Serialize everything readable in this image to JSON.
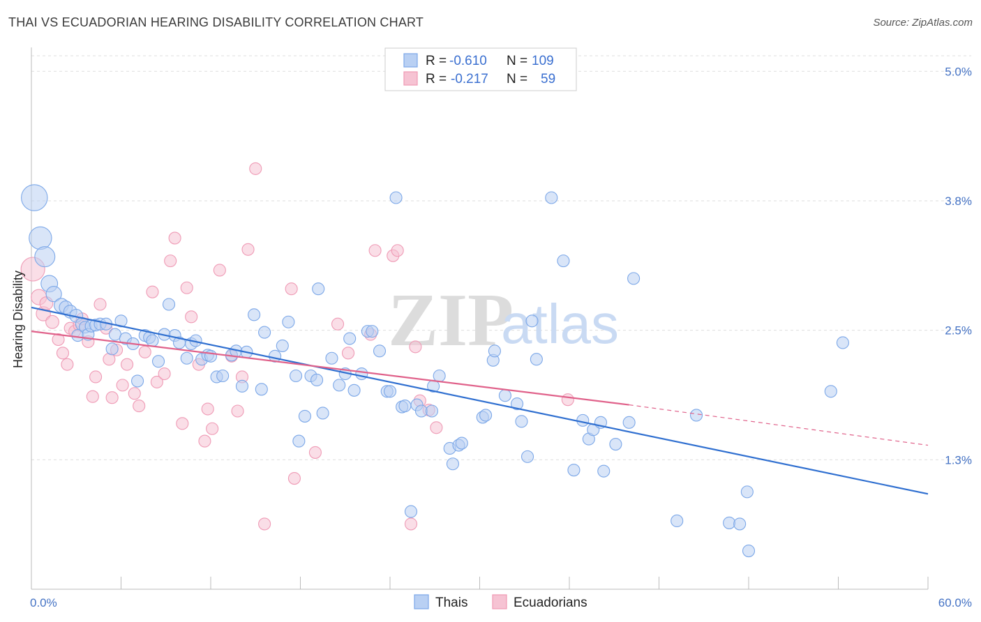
{
  "title": "THAI VS ECUADORIAN HEARING DISABILITY CORRELATION CHART",
  "source": "Source: ZipAtlas.com",
  "watermark": {
    "zip": "ZIP",
    "atlas": "atlas"
  },
  "chart_data": {
    "type": "scatter",
    "xlabel": "",
    "ylabel": "Hearing Disability",
    "xlim": [
      0,
      60
    ],
    "ylim": [
      0,
      5.15
    ],
    "x_tick_labels": [
      "0.0%",
      "60.0%"
    ],
    "y_ticks": [
      {
        "value": 1.25,
        "label": "1.3%"
      },
      {
        "value": 2.5,
        "label": "2.5%"
      },
      {
        "value": 3.75,
        "label": "3.8%"
      },
      {
        "value": 5.0,
        "label": "5.0%"
      }
    ],
    "grid": true,
    "legend_position": "bottom-center",
    "stats": [
      {
        "r_label": "R =",
        "r": "-0.610",
        "n_label": "N =",
        "n": "109"
      },
      {
        "r_label": "R =",
        "r": "-0.217",
        "n_label": "N =",
        "n": "59"
      }
    ],
    "series": [
      {
        "name": "Thais",
        "color": "#7ba7e8",
        "fill": "#b9d0f3",
        "line_color": "#2f6fd0",
        "trend": {
          "x0": 0,
          "y0": 2.72,
          "x1": 60,
          "y1": 0.92
        },
        "points": [
          [
            0.2,
            3.78,
            2.2
          ],
          [
            0.6,
            3.39,
            1.9
          ],
          [
            0.9,
            3.21,
            1.7
          ],
          [
            1.2,
            2.95,
            1.4
          ],
          [
            1.5,
            2.85,
            1.3
          ],
          [
            2.0,
            2.74,
            1.2
          ],
          [
            2.3,
            2.72,
            1.1
          ],
          [
            2.6,
            2.68,
            1.1
          ],
          [
            3.0,
            2.64,
            1.1
          ],
          [
            3.1,
            2.45,
            1.0
          ],
          [
            3.4,
            2.56,
            1.1
          ],
          [
            3.6,
            2.53,
            1.0
          ],
          [
            3.8,
            2.46,
            1.0
          ],
          [
            4.0,
            2.54,
            1.0
          ],
          [
            4.3,
            2.55,
            1.0
          ],
          [
            4.6,
            2.56,
            1.0
          ],
          [
            5.0,
            2.56,
            1.0
          ],
          [
            5.4,
            2.32,
            1.0
          ],
          [
            5.6,
            2.46,
            1.0
          ],
          [
            6.0,
            2.59,
            1.0
          ],
          [
            6.3,
            2.42,
            1.0
          ],
          [
            6.8,
            2.37,
            1.0
          ],
          [
            7.1,
            2.01,
            1.0
          ],
          [
            7.6,
            2.45,
            1.0
          ],
          [
            7.9,
            2.43,
            1.0
          ],
          [
            8.1,
            2.4,
            1.0
          ],
          [
            8.5,
            2.2,
            1.0
          ],
          [
            8.9,
            2.46,
            1.0
          ],
          [
            9.2,
            2.75,
            1.0
          ],
          [
            9.6,
            2.45,
            1.0
          ],
          [
            9.9,
            2.38,
            1.0
          ],
          [
            10.4,
            2.23,
            1.0
          ],
          [
            10.7,
            2.37,
            1.0
          ],
          [
            11.0,
            2.4,
            1.0
          ],
          [
            11.4,
            2.22,
            1.0
          ],
          [
            11.8,
            2.26,
            1.0
          ],
          [
            12.0,
            2.25,
            1.0
          ],
          [
            12.4,
            2.05,
            1.0
          ],
          [
            12.8,
            2.06,
            1.0
          ],
          [
            13.4,
            2.26,
            1.0
          ],
          [
            13.7,
            2.3,
            1.0
          ],
          [
            14.1,
            1.96,
            1.0
          ],
          [
            14.4,
            2.29,
            1.0
          ],
          [
            14.9,
            2.65,
            1.0
          ],
          [
            15.4,
            1.93,
            1.0
          ],
          [
            15.6,
            2.48,
            1.0
          ],
          [
            16.3,
            2.25,
            1.0
          ],
          [
            16.8,
            2.35,
            1.0
          ],
          [
            17.2,
            2.58,
            1.0
          ],
          [
            17.7,
            2.06,
            1.0
          ],
          [
            17.9,
            1.43,
            1.0
          ],
          [
            18.3,
            1.67,
            1.0
          ],
          [
            18.7,
            2.06,
            1.0
          ],
          [
            19.1,
            2.02,
            1.0
          ],
          [
            19.2,
            2.9,
            1.0
          ],
          [
            19.5,
            1.7,
            1.0
          ],
          [
            20.1,
            2.23,
            1.0
          ],
          [
            20.6,
            1.97,
            1.0
          ],
          [
            21.0,
            2.08,
            1.0
          ],
          [
            21.3,
            2.42,
            1.0
          ],
          [
            21.6,
            1.92,
            1.0
          ],
          [
            22.1,
            2.08,
            1.0
          ],
          [
            22.5,
            2.49,
            1.0
          ],
          [
            22.8,
            2.49,
            1.0
          ],
          [
            23.3,
            2.3,
            1.0
          ],
          [
            23.8,
            1.91,
            1.0
          ],
          [
            24.0,
            1.91,
            1.0
          ],
          [
            24.4,
            3.78,
            1.0
          ],
          [
            24.8,
            1.76,
            1.0
          ],
          [
            25.0,
            1.77,
            1.0
          ],
          [
            25.4,
            0.75,
            1.0
          ],
          [
            25.8,
            1.78,
            1.0
          ],
          [
            26.1,
            1.72,
            1.0
          ],
          [
            26.8,
            1.72,
            1.0
          ],
          [
            26.9,
            1.96,
            1.0
          ],
          [
            27.3,
            2.06,
            1.0
          ],
          [
            28.0,
            1.36,
            1.0
          ],
          [
            28.2,
            1.21,
            1.0
          ],
          [
            28.6,
            1.39,
            1.0
          ],
          [
            28.8,
            1.41,
            1.0
          ],
          [
            30.2,
            1.66,
            1.0
          ],
          [
            30.4,
            1.68,
            1.0
          ],
          [
            30.9,
            2.21,
            1.0
          ],
          [
            31.0,
            2.3,
            1.0
          ],
          [
            31.7,
            1.87,
            1.0
          ],
          [
            32.5,
            1.79,
            1.0
          ],
          [
            32.8,
            1.62,
            1.0
          ],
          [
            33.2,
            1.28,
            1.0
          ],
          [
            33.5,
            2.59,
            1.0
          ],
          [
            33.8,
            2.22,
            1.0
          ],
          [
            34.8,
            3.78,
            1.0
          ],
          [
            35.6,
            3.17,
            1.0
          ],
          [
            36.3,
            1.15,
            1.0
          ],
          [
            36.9,
            1.63,
            1.0
          ],
          [
            37.3,
            1.45,
            1.0
          ],
          [
            37.6,
            1.54,
            1.0
          ],
          [
            38.1,
            1.61,
            1.0
          ],
          [
            38.3,
            1.14,
            1.0
          ],
          [
            39.1,
            1.4,
            1.0
          ],
          [
            40.0,
            1.61,
            1.0
          ],
          [
            40.3,
            3.0,
            1.0
          ],
          [
            43.2,
            0.66,
            1.0
          ],
          [
            44.5,
            1.68,
            1.0
          ],
          [
            46.7,
            0.64,
            1.0
          ],
          [
            47.4,
            0.63,
            1.0
          ],
          [
            47.9,
            0.94,
            1.0
          ],
          [
            48.0,
            0.37,
            1.0
          ],
          [
            53.5,
            1.91,
            1.0
          ],
          [
            54.3,
            2.38,
            1.0
          ]
        ]
      },
      {
        "name": "Ecuadorians",
        "color": "#ef9ab5",
        "fill": "#f6c3d3",
        "line_color": "#e0618a",
        "trend": {
          "x0": 0,
          "y0": 2.49,
          "x1": 40,
          "y1": 1.78
        },
        "trend_dashed": {
          "x0": 40,
          "y0": 1.78,
          "x1": 60,
          "y1": 1.39
        },
        "points": [
          [
            0.1,
            3.09,
            2.0
          ],
          [
            0.5,
            2.82,
            1.3
          ],
          [
            0.8,
            2.66,
            1.2
          ],
          [
            1.0,
            2.76,
            1.1
          ],
          [
            1.4,
            2.58,
            1.1
          ],
          [
            1.8,
            2.41,
            1.0
          ],
          [
            2.1,
            2.28,
            1.0
          ],
          [
            2.4,
            2.17,
            1.0
          ],
          [
            2.6,
            2.52,
            1.0
          ],
          [
            2.9,
            2.49,
            1.0
          ],
          [
            3.2,
            2.55,
            1.0
          ],
          [
            3.4,
            2.61,
            1.0
          ],
          [
            3.8,
            2.39,
            1.0
          ],
          [
            4.1,
            1.86,
            1.0
          ],
          [
            4.3,
            2.05,
            1.0
          ],
          [
            4.6,
            2.75,
            1.0
          ],
          [
            5.0,
            2.52,
            1.0
          ],
          [
            5.2,
            2.22,
            1.0
          ],
          [
            5.4,
            1.85,
            1.0
          ],
          [
            5.7,
            2.31,
            1.0
          ],
          [
            6.1,
            1.97,
            1.0
          ],
          [
            6.4,
            2.17,
            1.0
          ],
          [
            6.9,
            1.89,
            1.0
          ],
          [
            7.2,
            1.77,
            1.0
          ],
          [
            7.6,
            2.29,
            1.0
          ],
          [
            8.1,
            2.87,
            1.0
          ],
          [
            8.4,
            2.0,
            1.0
          ],
          [
            8.9,
            2.08,
            1.0
          ],
          [
            9.3,
            3.17,
            1.0
          ],
          [
            9.6,
            3.39,
            1.0
          ],
          [
            10.1,
            1.6,
            1.0
          ],
          [
            10.4,
            2.91,
            1.0
          ],
          [
            10.7,
            2.63,
            1.0
          ],
          [
            11.2,
            2.17,
            1.0
          ],
          [
            11.6,
            1.43,
            1.0
          ],
          [
            11.8,
            1.74,
            1.0
          ],
          [
            12.1,
            1.55,
            1.0
          ],
          [
            12.6,
            3.08,
            1.0
          ],
          [
            13.4,
            2.25,
            1.0
          ],
          [
            13.8,
            1.72,
            1.0
          ],
          [
            14.1,
            2.05,
            1.0
          ],
          [
            14.5,
            3.28,
            1.0
          ],
          [
            15.0,
            4.06,
            1.0
          ],
          [
            15.6,
            0.63,
            1.0
          ],
          [
            17.4,
            2.9,
            1.0
          ],
          [
            17.6,
            1.07,
            1.0
          ],
          [
            19.0,
            1.32,
            1.0
          ],
          [
            20.5,
            2.56,
            1.0
          ],
          [
            21.2,
            2.28,
            1.0
          ],
          [
            22.7,
            2.46,
            1.0
          ],
          [
            23.0,
            3.27,
            1.0
          ],
          [
            24.2,
            3.22,
            1.0
          ],
          [
            24.5,
            3.27,
            1.0
          ],
          [
            25.4,
            0.63,
            1.0
          ],
          [
            25.7,
            2.34,
            1.0
          ],
          [
            26.0,
            1.82,
            1.0
          ],
          [
            26.6,
            1.73,
            1.0
          ],
          [
            27.1,
            1.56,
            1.0
          ],
          [
            35.9,
            1.83,
            1.0
          ]
        ]
      }
    ]
  }
}
